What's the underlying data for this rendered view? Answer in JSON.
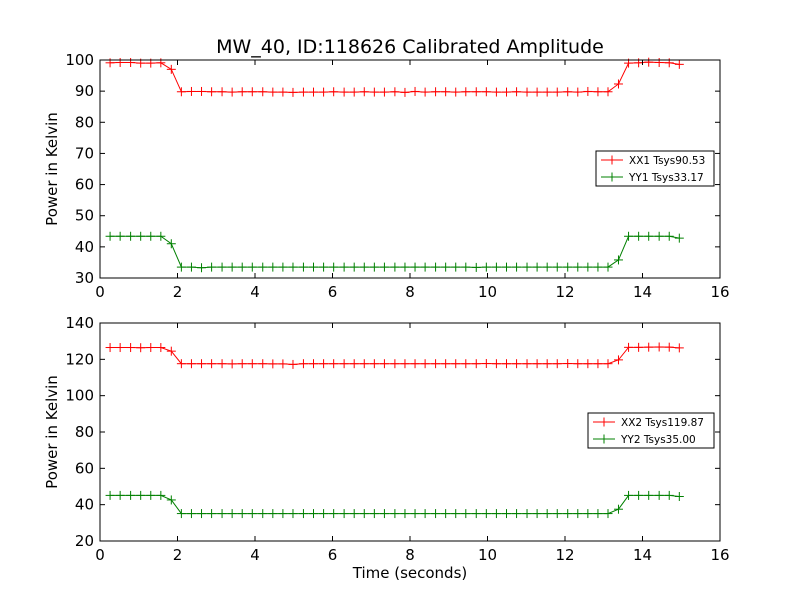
{
  "figure_title": "MW_40, ID:118626 Calibrated Amplitude",
  "chart_data": [
    {
      "type": "line",
      "title": "MW_40, ID:118626 Calibrated Amplitude",
      "xlabel": "",
      "ylabel": "Power in Kelvin",
      "xlim": [
        0,
        16
      ],
      "ylim": [
        30,
        100
      ],
      "xticks": [
        "0",
        "2",
        "4",
        "6",
        "8",
        "10",
        "12",
        "14",
        "16"
      ],
      "yticks": [
        "30",
        "40",
        "50",
        "60",
        "70",
        "80",
        "90",
        "100"
      ],
      "grid": false,
      "legend_position": "center-right",
      "x": [
        0.26,
        0.52,
        0.79,
        1.05,
        1.31,
        1.57,
        1.84,
        2.1,
        2.36,
        2.62,
        2.88,
        3.15,
        3.41,
        3.67,
        3.93,
        4.2,
        4.46,
        4.72,
        4.98,
        5.25,
        5.51,
        5.77,
        6.03,
        6.3,
        6.56,
        6.82,
        7.08,
        7.34,
        7.61,
        7.87,
        8.13,
        8.39,
        8.66,
        8.92,
        9.18,
        9.44,
        9.71,
        9.97,
        10.23,
        10.49,
        10.75,
        11.02,
        11.28,
        11.54,
        11.8,
        12.07,
        12.33,
        12.59,
        12.85,
        13.11,
        13.38,
        13.64,
        13.9,
        14.16,
        14.43,
        14.69,
        14.95
      ],
      "series": [
        {
          "name": "XX1 Tsys90.53",
          "color": "#ff0000",
          "values": [
            99.1,
            99.2,
            99.2,
            99.0,
            99.0,
            99.1,
            97.0,
            89.8,
            89.9,
            89.9,
            89.8,
            89.8,
            89.7,
            89.8,
            89.8,
            89.8,
            89.7,
            89.7,
            89.6,
            89.7,
            89.7,
            89.7,
            89.8,
            89.7,
            89.7,
            89.8,
            89.7,
            89.7,
            89.8,
            89.6,
            89.9,
            89.7,
            89.8,
            89.8,
            89.7,
            89.8,
            89.8,
            89.8,
            89.7,
            89.7,
            89.8,
            89.7,
            89.7,
            89.7,
            89.7,
            89.8,
            89.7,
            89.9,
            89.8,
            89.8,
            92.3,
            99.0,
            99.1,
            99.3,
            99.2,
            99.1,
            98.6
          ]
        },
        {
          "name": "YY1 Tsys33.17",
          "color": "#008000",
          "values": [
            43.4,
            43.4,
            43.4,
            43.4,
            43.4,
            43.4,
            41.0,
            33.5,
            33.5,
            33.3,
            33.5,
            33.5,
            33.5,
            33.5,
            33.5,
            33.5,
            33.5,
            33.5,
            33.5,
            33.5,
            33.5,
            33.5,
            33.5,
            33.5,
            33.5,
            33.5,
            33.5,
            33.5,
            33.5,
            33.5,
            33.5,
            33.5,
            33.5,
            33.5,
            33.5,
            33.5,
            33.4,
            33.5,
            33.5,
            33.5,
            33.5,
            33.5,
            33.5,
            33.5,
            33.5,
            33.5,
            33.5,
            33.5,
            33.5,
            33.5,
            35.8,
            43.4,
            43.4,
            43.4,
            43.4,
            43.4,
            42.8
          ]
        }
      ]
    },
    {
      "type": "line",
      "title": "",
      "xlabel": "Time (seconds)",
      "ylabel": "Power in Kelvin",
      "xlim": [
        0,
        16
      ],
      "ylim": [
        20,
        140
      ],
      "xticks": [
        "0",
        "2",
        "4",
        "6",
        "8",
        "10",
        "12",
        "14",
        "16"
      ],
      "yticks": [
        "20",
        "40",
        "60",
        "80",
        "100",
        "120",
        "140"
      ],
      "grid": false,
      "legend_position": "center-right",
      "x": [
        0.26,
        0.52,
        0.79,
        1.05,
        1.31,
        1.57,
        1.84,
        2.1,
        2.36,
        2.62,
        2.88,
        3.15,
        3.41,
        3.67,
        3.93,
        4.2,
        4.46,
        4.72,
        4.98,
        5.25,
        5.51,
        5.77,
        6.03,
        6.3,
        6.56,
        6.82,
        7.08,
        7.34,
        7.61,
        7.87,
        8.13,
        8.39,
        8.66,
        8.92,
        9.18,
        9.44,
        9.71,
        9.97,
        10.23,
        10.49,
        10.75,
        11.02,
        11.28,
        11.54,
        11.8,
        12.07,
        12.33,
        12.59,
        12.85,
        13.11,
        13.38,
        13.64,
        13.9,
        14.16,
        14.43,
        14.69,
        14.95
      ],
      "series": [
        {
          "name": "XX2 Tsys119.87",
          "color": "#ff0000",
          "values": [
            126.5,
            126.5,
            126.5,
            126.4,
            126.5,
            126.5,
            124.5,
            117.6,
            117.6,
            117.6,
            117.6,
            117.6,
            117.5,
            117.6,
            117.6,
            117.6,
            117.5,
            117.5,
            117.2,
            117.6,
            117.6,
            117.6,
            117.6,
            117.6,
            117.6,
            117.6,
            117.6,
            117.6,
            117.6,
            117.6,
            117.6,
            117.6,
            117.6,
            117.6,
            117.6,
            117.6,
            117.6,
            117.7,
            117.6,
            117.6,
            117.6,
            117.6,
            117.6,
            117.6,
            117.6,
            117.7,
            117.6,
            117.6,
            117.6,
            117.6,
            119.7,
            126.6,
            126.6,
            126.7,
            126.8,
            126.7,
            126.3
          ]
        },
        {
          "name": "YY2 Tsys35.00",
          "color": "#008000",
          "values": [
            45.1,
            45.1,
            45.1,
            45.1,
            45.1,
            45.1,
            42.6,
            35.1,
            35.1,
            35.1,
            35.1,
            35.1,
            35.1,
            35.1,
            35.1,
            35.1,
            35.1,
            35.1,
            35.1,
            35.1,
            35.1,
            35.1,
            35.1,
            35.1,
            35.1,
            35.1,
            35.1,
            35.1,
            35.1,
            35.1,
            35.1,
            35.1,
            35.1,
            35.1,
            35.1,
            35.1,
            35.1,
            35.1,
            35.1,
            35.1,
            35.1,
            35.1,
            35.1,
            35.1,
            35.1,
            35.1,
            35.1,
            35.1,
            35.1,
            35.1,
            37.5,
            45.1,
            45.1,
            45.1,
            45.1,
            45.1,
            44.5
          ]
        }
      ]
    }
  ]
}
